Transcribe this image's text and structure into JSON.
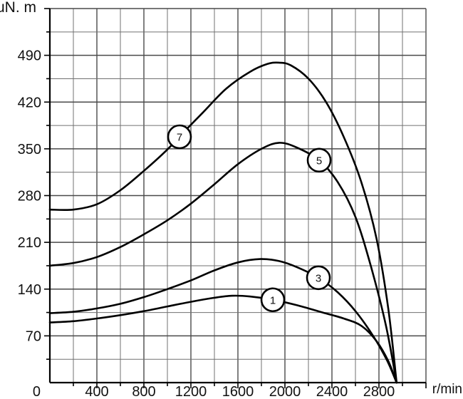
{
  "chart_data": {
    "type": "line",
    "title": "",
    "ylabel": "uN. m",
    "xlabel": "r/min",
    "origin_label": "0",
    "grid": true,
    "legend": "circled numbers on curves",
    "x_axis": {
      "min": 0,
      "max": 3200,
      "minor_step": 200,
      "major_step": 400,
      "tick_labels": [
        "400",
        "800",
        "1200",
        "1600",
        "2000",
        "2400",
        "2800"
      ]
    },
    "y_axis": {
      "min": 0,
      "max": 560,
      "minor_step": 35,
      "major_step": 70,
      "tick_labels": [
        "70",
        "140",
        "210",
        "280",
        "350",
        "420",
        "490"
      ]
    },
    "colors": {
      "curve": "#000000",
      "grid_minor": "#707070",
      "grid_major": "#4a4a4a",
      "axis": "#000000",
      "marker_fill": "#ffffff",
      "text": "#111111"
    },
    "series": [
      {
        "name": "7",
        "marker": {
          "label": "7",
          "x": 1103,
          "y": 368
        },
        "points": [
          [
            0,
            259
          ],
          [
            200,
            259
          ],
          [
            400,
            267
          ],
          [
            600,
            288
          ],
          [
            800,
            317
          ],
          [
            1000,
            349
          ],
          [
            1100,
            368
          ],
          [
            1300,
            404
          ],
          [
            1500,
            440
          ],
          [
            1700,
            465
          ],
          [
            1850,
            477
          ],
          [
            1950,
            479
          ],
          [
            2050,
            475
          ],
          [
            2200,
            455
          ],
          [
            2350,
            420
          ],
          [
            2500,
            368
          ],
          [
            2650,
            300
          ],
          [
            2780,
            215
          ],
          [
            2880,
            110
          ],
          [
            2950,
            0
          ]
        ]
      },
      {
        "name": "5",
        "marker": {
          "label": "5",
          "x": 2291,
          "y": 333
        },
        "points": [
          [
            0,
            175
          ],
          [
            200,
            179
          ],
          [
            400,
            188
          ],
          [
            600,
            203
          ],
          [
            800,
            222
          ],
          [
            1000,
            243
          ],
          [
            1200,
            268
          ],
          [
            1400,
            297
          ],
          [
            1600,
            327
          ],
          [
            1800,
            350
          ],
          [
            1950,
            359
          ],
          [
            2100,
            352
          ],
          [
            2290,
            333
          ],
          [
            2450,
            300
          ],
          [
            2600,
            248
          ],
          [
            2730,
            175
          ],
          [
            2860,
            85
          ],
          [
            2950,
            0
          ]
        ]
      },
      {
        "name": "3",
        "marker": {
          "label": "3",
          "x": 2285,
          "y": 157
        },
        "points": [
          [
            0,
            104
          ],
          [
            200,
            106
          ],
          [
            400,
            111
          ],
          [
            600,
            118
          ],
          [
            800,
            128
          ],
          [
            1000,
            140
          ],
          [
            1200,
            153
          ],
          [
            1400,
            168
          ],
          [
            1600,
            180
          ],
          [
            1790,
            185
          ],
          [
            1950,
            182
          ],
          [
            2100,
            173
          ],
          [
            2285,
            157
          ],
          [
            2450,
            135
          ],
          [
            2600,
            107
          ],
          [
            2750,
            70
          ],
          [
            2870,
            33
          ],
          [
            2950,
            0
          ]
        ]
      },
      {
        "name": "1",
        "marker": {
          "label": "1",
          "x": 1897,
          "y": 124
        },
        "points": [
          [
            0,
            90
          ],
          [
            200,
            92
          ],
          [
            400,
            96
          ],
          [
            600,
            101
          ],
          [
            800,
            107
          ],
          [
            1000,
            114
          ],
          [
            1200,
            121
          ],
          [
            1400,
            127
          ],
          [
            1550,
            130
          ],
          [
            1700,
            129
          ],
          [
            1900,
            124
          ],
          [
            2100,
            116
          ],
          [
            2300,
            106
          ],
          [
            2500,
            96
          ],
          [
            2650,
            85
          ],
          [
            2780,
            62
          ],
          [
            2880,
            32
          ],
          [
            2950,
            0
          ]
        ]
      }
    ]
  }
}
